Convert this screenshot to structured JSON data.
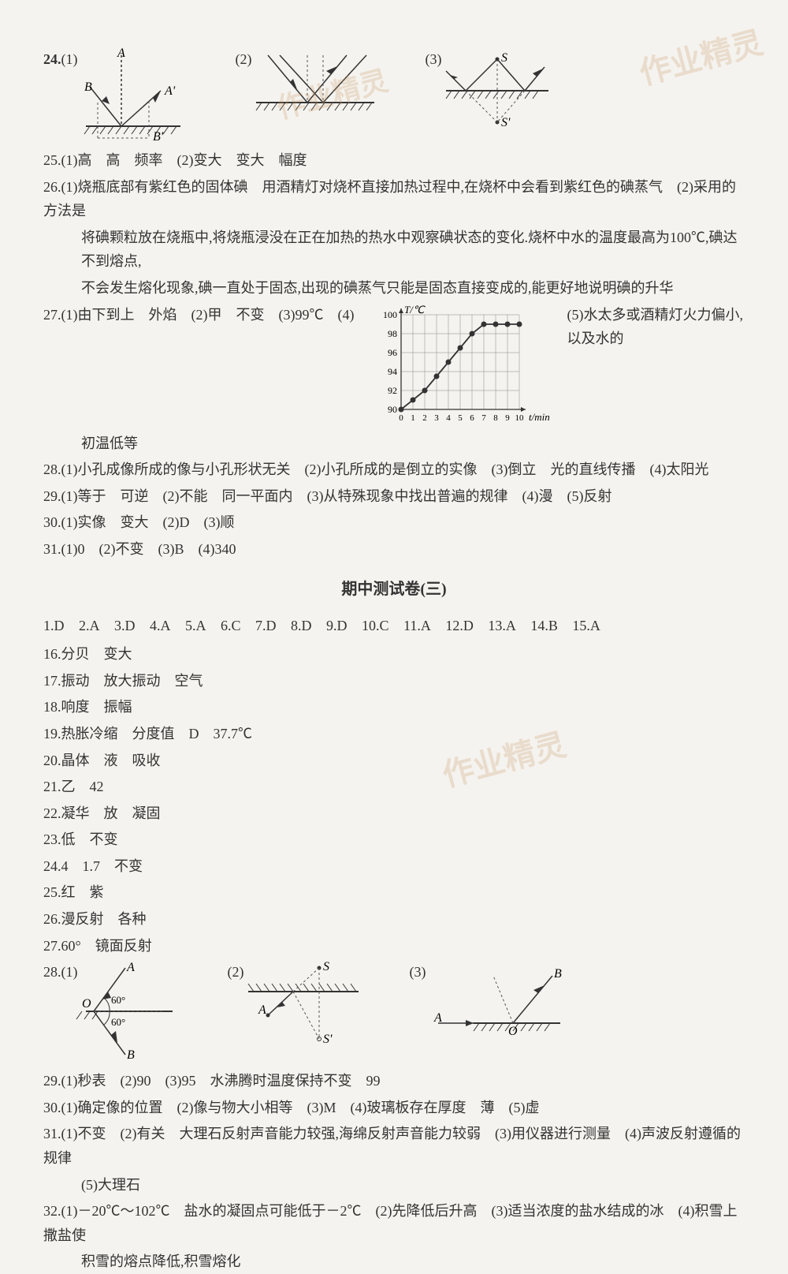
{
  "watermarks": {
    "wm1": "作业精灵",
    "wm2": "作业精灵",
    "wm3": "作业精灵"
  },
  "q24": {
    "num": "24.",
    "part1": "(1)",
    "part2": "(2)",
    "part3": "(3)",
    "labelA": "A",
    "labelB": "B",
    "labelAp": "A'",
    "labelBp": "B'",
    "labelS": "S",
    "labelSp": "S'",
    "labelO": "O"
  },
  "q25": {
    "text": "25.(1)高　高　频率　(2)变大　变大　幅度"
  },
  "q26": {
    "line1": "26.(1)烧瓶底部有紫红色的固体碘　用酒精灯对烧杯直接加热过程中,在烧杯中会看到紫红色的碘蒸气　(2)采用的方法是",
    "line2": "将碘颗粒放在烧瓶中,将烧瓶浸没在正在加热的热水中观察碘状态的变化.烧杯中水的温度最高为100℃,碘达不到熔点,",
    "line3": "不会发生熔化现象,碘一直处于固态,出现的碘蒸气只能是固态直接变成的,能更好地说明碘的升华"
  },
  "q27": {
    "prefix": "27.(1)由下到上　外焰　(2)甲　不变　(3)99℃　(4)",
    "suffix": "(5)水太多或酒精灯火力偏小,以及水的",
    "tail": "初温低等",
    "chart": {
      "xlabel": "t/min",
      "ylabel": "T/℃",
      "ylim": [
        90,
        100
      ],
      "xlim": [
        0,
        10
      ],
      "yticks": [
        90,
        92,
        94,
        96,
        98,
        100
      ],
      "xticks": [
        0,
        1,
        2,
        3,
        4,
        5,
        6,
        7,
        8,
        9,
        10
      ],
      "data": [
        [
          0,
          90
        ],
        [
          1,
          91
        ],
        [
          2,
          92
        ],
        [
          3,
          93.5
        ],
        [
          4,
          95
        ],
        [
          5,
          96.5
        ],
        [
          6,
          98
        ],
        [
          7,
          99
        ],
        [
          8,
          99
        ],
        [
          9,
          99
        ],
        [
          10,
          99
        ]
      ],
      "line_color": "#333333",
      "grid_color": "#888888",
      "marker_size": 3.5
    }
  },
  "q28": {
    "text": "28.(1)小孔成像所成的像与小孔形状无关　(2)小孔所成的是倒立的实像　(3)倒立　光的直线传播　(4)太阳光"
  },
  "q29": {
    "text": "29.(1)等于　可逆　(2)不能　同一平面内　(3)从特殊现象中找出普遍的规律　(4)漫　(5)反射"
  },
  "q30": {
    "text": "30.(1)实像　变大　(2)D　(3)顺"
  },
  "q31": {
    "text": "31.(1)0　(2)不变　(3)B　(4)340"
  },
  "section3_title": "期中测试卷(三)",
  "mc": {
    "a1": "1.D",
    "a2": "2.A",
    "a3": "3.D",
    "a4": "4.A",
    "a5": "5.A",
    "a6": "6.C",
    "a7": "7.D",
    "a8": "8.D",
    "a9": "9.D",
    "a10": "10.C",
    "a11": "11.A",
    "a12": "12.D",
    "a13": "13.A",
    "a14": "14.B",
    "a15": "15.A"
  },
  "s3": {
    "q16": "16.分贝　变大",
    "q17": "17.振动　放大振动　空气",
    "q18": "18.响度　振幅",
    "q19": "19.热胀冷缩　分度值　D　37.7℃",
    "q20": "20.晶体　液　吸收",
    "q21": "21.乙　42",
    "q22": "22.凝华　放　凝固",
    "q23": "23.低　不变",
    "q24": "24.4　1.7　不变",
    "q25": "25.红　紫",
    "q26": "26.漫反射　各种",
    "q27": "27.60°　镜面反射",
    "q28": {
      "prefix": "28.(1)",
      "part2": "(2)",
      "part3": "(3)",
      "labelA": "A",
      "labelB": "B",
      "labelO": "O",
      "labelS": "S",
      "labelSp": "S'",
      "angle1": "60°",
      "angle2": "60°"
    },
    "q29": "29.(1)秒表　(2)90　(3)95　水沸腾时温度保持不变　99",
    "q30": "30.(1)确定像的位置　(2)像与物大小相等　(3)M　(4)玻璃板存在厚度　薄　(5)虚",
    "q31_l1": "31.(1)不变　(2)有关　大理石反射声音能力较强,海绵反射声音能力较弱　(3)用仪器进行测量　(4)声波反射遵循的规律",
    "q31_l2": "(5)大理石",
    "q32_l1": "32.(1)－20℃～102℃　盐水的凝固点可能低于－2℃　(2)先降低后升高　(3)适当浓度的盐水结成的冰　(4)积雪上撒盐使",
    "q32_l2": "积雪的熔点降低,积雪熔化"
  },
  "colors": {
    "text": "#333333",
    "stroke": "#333333",
    "dash": "#555555",
    "bg": "#f5f3ef"
  }
}
